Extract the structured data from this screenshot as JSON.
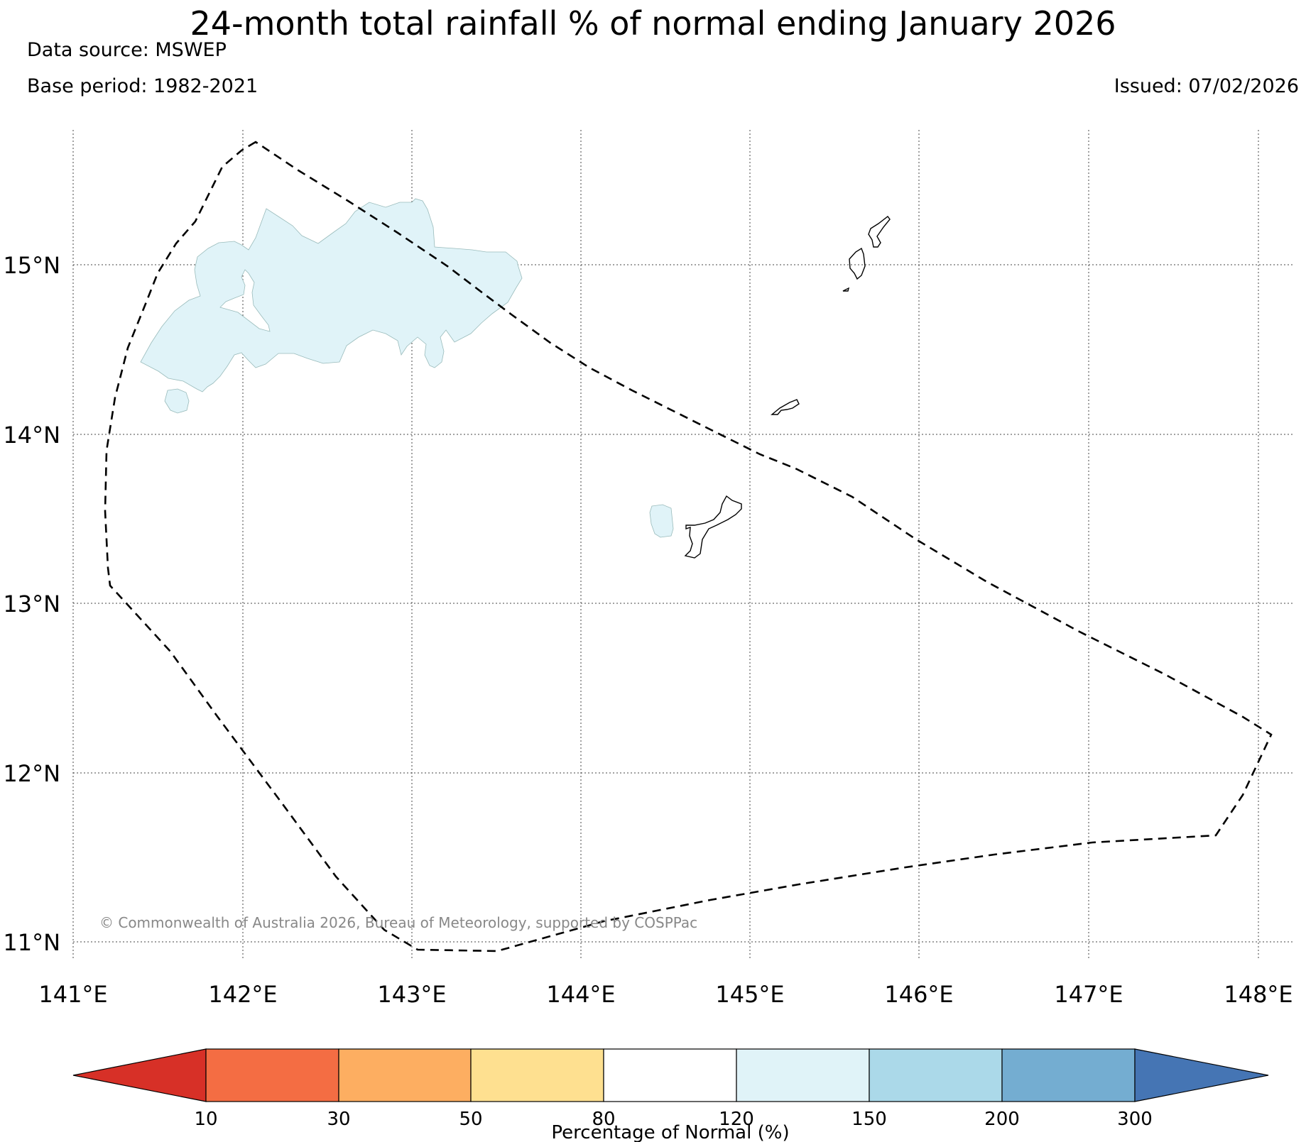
{
  "title": "24-month total rainfall % of normal ending January 2026",
  "data_source": "Data source: MSWEP",
  "base_period": "Base period: 1982-2021",
  "issued": "Issued: 07/02/2026",
  "copyright": "© Commonwealth of Australia 2026, Bureau of Meteorology, supported by COSPPac",
  "map": {
    "lon_range": [
      141,
      148.2
    ],
    "lat_range": [
      10.85,
      15.8
    ],
    "lon_ticks": [
      "141°E",
      "142°E",
      "143°E",
      "144°E",
      "145°E",
      "146°E",
      "147°E",
      "148°E"
    ],
    "lat_ticks": [
      "15°N",
      "14°N",
      "13°N",
      "12°N",
      "11°N"
    ],
    "grid": "dotted",
    "eez_boundary": "dashed",
    "shaded_regions": [
      {
        "name": "northern-islands-area",
        "category": "120-150"
      },
      {
        "name": "small-island-patch",
        "category": "120-150"
      },
      {
        "name": "rota-area",
        "category": "120-150"
      }
    ],
    "islands": [
      "Saipan",
      "Tinian",
      "Aguijan",
      "Rota",
      "Guam"
    ]
  },
  "legend": {
    "title": "Percentage of Normal (%)",
    "ticks": [
      "10",
      "30",
      "50",
      "80",
      "120",
      "150",
      "200",
      "300"
    ],
    "colors": [
      "#d73027",
      "#f46d43",
      "#fdae61",
      "#fee090",
      "#ffffff",
      "#e0f3f8",
      "#abd9e9",
      "#74add1",
      "#4575b4"
    ]
  }
}
